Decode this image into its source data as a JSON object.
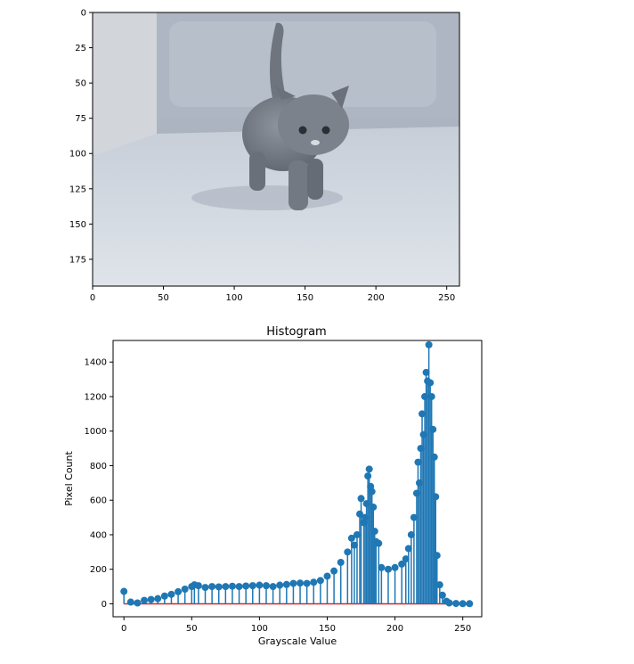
{
  "chart_data": [
    {
      "type": "image",
      "title": "",
      "xlabel": "",
      "ylabel": "",
      "xlim": [
        0,
        259
      ],
      "ylim": [
        194,
        0
      ],
      "x_ticks": [
        0,
        50,
        100,
        150,
        200,
        250
      ],
      "y_ticks": [
        0,
        25,
        50,
        75,
        100,
        125,
        150,
        175
      ],
      "image_subject": "grayscale photo of a gray kitten walking on carpet"
    },
    {
      "type": "stem",
      "title": "Histogram",
      "xlabel": "Grayscale Value",
      "ylabel": "Pixel Count",
      "xlim": [
        -8,
        264
      ],
      "ylim": [
        -75,
        1525
      ],
      "x_ticks": [
        0,
        50,
        100,
        150,
        200,
        250
      ],
      "y_ticks": [
        0,
        200,
        400,
        600,
        800,
        1000,
        1200,
        1400
      ],
      "grid": false,
      "series": [
        {
          "color": "#1f77b4",
          "baseline_color": "#d62728",
          "points": [
            [
              0,
              72
            ],
            [
              5,
              10
            ],
            [
              10,
              5
            ],
            [
              15,
              20
            ],
            [
              20,
              25
            ],
            [
              25,
              30
            ],
            [
              30,
              45
            ],
            [
              35,
              55
            ],
            [
              40,
              70
            ],
            [
              45,
              85
            ],
            [
              50,
              100
            ],
            [
              52,
              110
            ],
            [
              55,
              105
            ],
            [
              60,
              95
            ],
            [
              65,
              100
            ],
            [
              70,
              98
            ],
            [
              75,
              100
            ],
            [
              80,
              102
            ],
            [
              85,
              100
            ],
            [
              90,
              103
            ],
            [
              95,
              105
            ],
            [
              100,
              108
            ],
            [
              105,
              105
            ],
            [
              110,
              100
            ],
            [
              115,
              108
            ],
            [
              120,
              112
            ],
            [
              125,
              118
            ],
            [
              130,
              120
            ],
            [
              135,
              118
            ],
            [
              140,
              125
            ],
            [
              145,
              135
            ],
            [
              150,
              160
            ],
            [
              155,
              190
            ],
            [
              160,
              240
            ],
            [
              165,
              300
            ],
            [
              168,
              380
            ],
            [
              170,
              340
            ],
            [
              172,
              400
            ],
            [
              174,
              520
            ],
            [
              175,
              610
            ],
            [
              177,
              470
            ],
            [
              178,
              500
            ],
            [
              179,
              580
            ],
            [
              180,
              740
            ],
            [
              181,
              780
            ],
            [
              182,
              680
            ],
            [
              183,
              650
            ],
            [
              184,
              560
            ],
            [
              185,
              420
            ],
            [
              186,
              360
            ],
            [
              188,
              350
            ],
            [
              190,
              210
            ],
            [
              195,
              200
            ],
            [
              200,
              210
            ],
            [
              205,
              230
            ],
            [
              208,
              260
            ],
            [
              210,
              320
            ],
            [
              212,
              400
            ],
            [
              214,
              500
            ],
            [
              216,
              640
            ],
            [
              217,
              820
            ],
            [
              218,
              700
            ],
            [
              219,
              900
            ],
            [
              220,
              1100
            ],
            [
              221,
              980
            ],
            [
              222,
              1200
            ],
            [
              223,
              1340
            ],
            [
              224,
              1290
            ],
            [
              225,
              1500
            ],
            [
              226,
              1280
            ],
            [
              227,
              1200
            ],
            [
              228,
              1010
            ],
            [
              229,
              850
            ],
            [
              230,
              620
            ],
            [
              231,
              280
            ],
            [
              233,
              110
            ],
            [
              235,
              50
            ],
            [
              238,
              15
            ],
            [
              240,
              5
            ],
            [
              245,
              2
            ],
            [
              250,
              1
            ],
            [
              255,
              1
            ]
          ]
        }
      ]
    }
  ]
}
